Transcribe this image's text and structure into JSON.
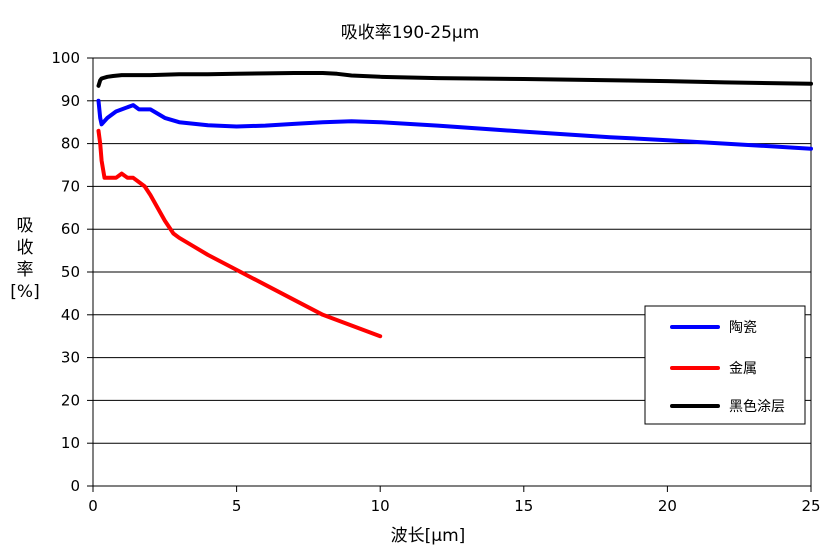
{
  "chart_data": {
    "type": "line",
    "title": "吸收率190-25μm",
    "xlabel": "波长[μm]",
    "ylabel_lines": [
      "吸",
      "收",
      "率",
      "[%]"
    ],
    "xlim": [
      0,
      25
    ],
    "ylim": [
      0,
      100
    ],
    "xticks": [
      "0",
      "5",
      "10",
      "15",
      "20",
      "25"
    ],
    "yticks": [
      "0",
      "10",
      "20",
      "30",
      "40",
      "50",
      "60",
      "70",
      "80",
      "90",
      "100"
    ],
    "grid": "horizontal",
    "legend_position": "right",
    "series": [
      {
        "name": "陶瓷",
        "color": "#0000ff",
        "x": [
          0.19,
          0.25,
          0.3,
          0.5,
          0.8,
          1.0,
          1.2,
          1.4,
          1.6,
          2.0,
          2.5,
          3.0,
          4.0,
          5.0,
          6.0,
          7.0,
          8.0,
          9.0,
          10.0,
          12.0,
          15.0,
          18.0,
          20.0,
          22.0,
          25.0
        ],
        "y": [
          90,
          86,
          84.5,
          86,
          87.5,
          88,
          88.5,
          89,
          88,
          88,
          86,
          85,
          84.3,
          84,
          84.2,
          84.6,
          85,
          85.2,
          85,
          84.2,
          82.8,
          81.5,
          80.8,
          80,
          78.8
        ]
      },
      {
        "name": "金属",
        "color": "#ff0000",
        "x": [
          0.19,
          0.25,
          0.3,
          0.4,
          0.6,
          0.8,
          1.0,
          1.2,
          1.4,
          1.6,
          1.8,
          2.0,
          2.5,
          2.8,
          3.0,
          3.5,
          4.0,
          5.0,
          6.0,
          7.0,
          8.0,
          9.0,
          10.0
        ],
        "y": [
          83,
          80,
          76,
          72,
          72,
          72,
          73,
          72,
          72,
          71,
          70,
          68,
          62,
          59,
          58,
          56,
          54,
          50.5,
          47,
          43.5,
          40,
          37.5,
          35
        ]
      },
      {
        "name": "黑色涂层",
        "color": "#000000",
        "x": [
          0.19,
          0.25,
          0.3,
          0.5,
          0.7,
          1.0,
          2.0,
          3.0,
          4.0,
          5.0,
          6.0,
          7.0,
          8.0,
          8.5,
          9.0,
          10.0,
          12.0,
          15.0,
          18.0,
          20.0,
          22.0,
          25.0
        ],
        "y": [
          93.5,
          94.8,
          95.2,
          95.6,
          95.8,
          96,
          96,
          96.2,
          96.2,
          96.3,
          96.4,
          96.5,
          96.5,
          96.3,
          95.9,
          95.6,
          95.3,
          95.1,
          94.8,
          94.6,
          94.3,
          94
        ]
      }
    ]
  },
  "colors": {
    "axis": "#000000",
    "grid": "#000000",
    "background": "#ffffff"
  }
}
